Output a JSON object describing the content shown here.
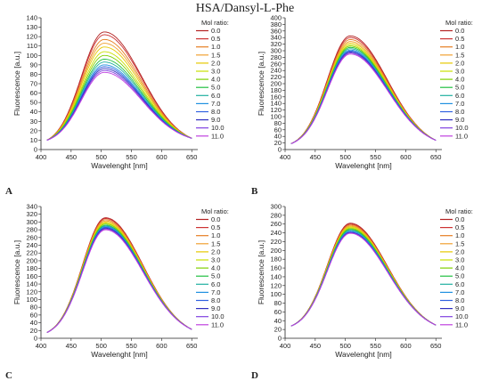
{
  "figure_title": "HSA/Dansyl-L-Phe",
  "series_colors": [
    "#b22222",
    "#cc3333",
    "#e67e22",
    "#f0a030",
    "#e6c800",
    "#c8e000",
    "#7fd000",
    "#20c040",
    "#20b0a0",
    "#2090e0",
    "#3060e0",
    "#3030c0",
    "#8040e0",
    "#c040e0"
  ],
  "chart_data": [
    {
      "panel_label": "A",
      "type": "line",
      "xlabel": "Wavelenght [nm]",
      "ylabel": "Fluorescence [a.u.]",
      "xlim": [
        400,
        660
      ],
      "ylim": [
        0,
        140
      ],
      "xticks": [
        400,
        450,
        500,
        550,
        600,
        650
      ],
      "yticks": [
        0,
        10,
        20,
        30,
        40,
        50,
        60,
        70,
        80,
        90,
        100,
        110,
        120,
        130,
        140
      ],
      "legend_title": "Mol ratio:",
      "legend_position": "right",
      "x_range": [
        410,
        650
      ],
      "series": [
        {
          "name": "0.0",
          "peak": 125,
          "peak_x": 505,
          "start": 10,
          "end": 12
        },
        {
          "name": "0.5",
          "peak": 122,
          "peak_x": 505,
          "start": 10,
          "end": 12
        },
        {
          "name": "1.0",
          "peak": 117,
          "peak_x": 505,
          "start": 10,
          "end": 12
        },
        {
          "name": "1.5",
          "peak": 113,
          "peak_x": 505,
          "start": 10,
          "end": 12
        },
        {
          "name": "2.0",
          "peak": 109,
          "peak_x": 505,
          "start": 10,
          "end": 12
        },
        {
          "name": "3.0",
          "peak": 104,
          "peak_x": 505,
          "start": 10,
          "end": 12
        },
        {
          "name": "4.0",
          "peak": 100,
          "peak_x": 505,
          "start": 10,
          "end": 12
        },
        {
          "name": "5.0",
          "peak": 96,
          "peak_x": 505,
          "start": 10,
          "end": 12
        },
        {
          "name": "6.0",
          "peak": 93,
          "peak_x": 505,
          "start": 10,
          "end": 12
        },
        {
          "name": "7.0",
          "peak": 90,
          "peak_x": 505,
          "start": 10,
          "end": 12
        },
        {
          "name": "8.0",
          "peak": 88,
          "peak_x": 505,
          "start": 10,
          "end": 12
        },
        {
          "name": "9.0",
          "peak": 86,
          "peak_x": 505,
          "start": 10,
          "end": 12
        },
        {
          "name": "10.0",
          "peak": 84,
          "peak_x": 505,
          "start": 10,
          "end": 12
        },
        {
          "name": "11.0",
          "peak": 82,
          "peak_x": 505,
          "start": 10,
          "end": 12
        }
      ]
    },
    {
      "panel_label": "B",
      "type": "line",
      "xlabel": "Wavelenght [nm]",
      "ylabel": "Fluorescence [a.u.]",
      "xlim": [
        400,
        660
      ],
      "ylim": [
        0,
        400
      ],
      "xticks": [
        400,
        450,
        500,
        550,
        600,
        650
      ],
      "yticks": [
        0,
        20,
        40,
        60,
        80,
        100,
        120,
        140,
        160,
        180,
        200,
        220,
        240,
        260,
        280,
        300,
        320,
        340,
        360,
        380,
        400
      ],
      "legend_title": "Mol ratio:",
      "legend_position": "right",
      "x_range": [
        410,
        650
      ],
      "series": [
        {
          "name": "0.0",
          "peak": 345,
          "peak_x": 508,
          "start": 18,
          "end": 28
        },
        {
          "name": "0.5",
          "peak": 340,
          "peak_x": 508,
          "start": 18,
          "end": 28
        },
        {
          "name": "1.0",
          "peak": 334,
          "peak_x": 508,
          "start": 18,
          "end": 28
        },
        {
          "name": "1.5",
          "peak": 328,
          "peak_x": 508,
          "start": 18,
          "end": 28
        },
        {
          "name": "2.0",
          "peak": 323,
          "peak_x": 508,
          "start": 18,
          "end": 28
        },
        {
          "name": "3.0",
          "peak": 318,
          "peak_x": 508,
          "start": 18,
          "end": 28
        },
        {
          "name": "4.0",
          "peak": 314,
          "peak_x": 508,
          "start": 18,
          "end": 28
        },
        {
          "name": "5.0",
          "peak": 310,
          "peak_x": 508,
          "start": 18,
          "end": 28
        },
        {
          "name": "6.0",
          "peak": 306,
          "peak_x": 508,
          "start": 18,
          "end": 28
        },
        {
          "name": "7.0",
          "peak": 302,
          "peak_x": 508,
          "start": 18,
          "end": 28
        },
        {
          "name": "8.0",
          "peak": 299,
          "peak_x": 508,
          "start": 18,
          "end": 28
        },
        {
          "name": "9.0",
          "peak": 296,
          "peak_x": 508,
          "start": 18,
          "end": 28
        },
        {
          "name": "10.0",
          "peak": 293,
          "peak_x": 508,
          "start": 18,
          "end": 28
        },
        {
          "name": "11.0",
          "peak": 290,
          "peak_x": 508,
          "start": 18,
          "end": 28
        }
      ]
    },
    {
      "panel_label": "C",
      "type": "line",
      "xlabel": "Wavelenght [nm]",
      "ylabel": "Fluorescence [a.u.]",
      "xlim": [
        400,
        660
      ],
      "ylim": [
        0,
        340
      ],
      "xticks": [
        400,
        450,
        500,
        550,
        600,
        650
      ],
      "yticks": [
        0,
        20,
        40,
        60,
        80,
        100,
        120,
        140,
        160,
        180,
        200,
        220,
        240,
        260,
        280,
        300,
        320,
        340
      ],
      "legend_title": "Mol ratio:",
      "legend_position": "right",
      "x_range": [
        410,
        650
      ],
      "series": [
        {
          "name": "0.0",
          "peak": 311,
          "peak_x": 507,
          "start": 15,
          "end": 23
        },
        {
          "name": "0.5",
          "peak": 309,
          "peak_x": 507,
          "start": 15,
          "end": 23
        },
        {
          "name": "1.0",
          "peak": 306,
          "peak_x": 507,
          "start": 15,
          "end": 23
        },
        {
          "name": "1.5",
          "peak": 303,
          "peak_x": 507,
          "start": 15,
          "end": 23
        },
        {
          "name": "2.0",
          "peak": 300,
          "peak_x": 507,
          "start": 15,
          "end": 23
        },
        {
          "name": "3.0",
          "peak": 297,
          "peak_x": 507,
          "start": 15,
          "end": 23
        },
        {
          "name": "4.0",
          "peak": 295,
          "peak_x": 507,
          "start": 15,
          "end": 23
        },
        {
          "name": "5.0",
          "peak": 292,
          "peak_x": 507,
          "start": 15,
          "end": 23
        },
        {
          "name": "6.0",
          "peak": 290,
          "peak_x": 507,
          "start": 15,
          "end": 23
        },
        {
          "name": "7.0",
          "peak": 288,
          "peak_x": 507,
          "start": 15,
          "end": 23
        },
        {
          "name": "8.0",
          "peak": 286,
          "peak_x": 507,
          "start": 15,
          "end": 23
        },
        {
          "name": "9.0",
          "peak": 284,
          "peak_x": 507,
          "start": 15,
          "end": 23
        },
        {
          "name": "10.0",
          "peak": 282,
          "peak_x": 507,
          "start": 15,
          "end": 23
        },
        {
          "name": "11.0",
          "peak": 280,
          "peak_x": 507,
          "start": 15,
          "end": 23
        }
      ]
    },
    {
      "panel_label": "D",
      "type": "line",
      "xlabel": "Wavelenght [nm]",
      "ylabel": "Fluorescence [a.u.]",
      "xlim": [
        400,
        660
      ],
      "ylim": [
        0,
        300
      ],
      "xticks": [
        400,
        450,
        500,
        550,
        600,
        650
      ],
      "yticks": [
        0,
        20,
        40,
        60,
        80,
        100,
        120,
        140,
        160,
        180,
        200,
        220,
        240,
        260,
        280,
        300
      ],
      "legend_title": "Mol ratio:",
      "legend_position": "right",
      "x_range": [
        410,
        650
      ],
      "series": [
        {
          "name": "0.0",
          "peak": 262,
          "peak_x": 508,
          "start": 28,
          "end": 30
        },
        {
          "name": "0.5",
          "peak": 260,
          "peak_x": 508,
          "start": 28,
          "end": 30
        },
        {
          "name": "1.0",
          "peak": 258,
          "peak_x": 508,
          "start": 28,
          "end": 30
        },
        {
          "name": "1.5",
          "peak": 256,
          "peak_x": 508,
          "start": 28,
          "end": 30
        },
        {
          "name": "2.0",
          "peak": 254,
          "peak_x": 508,
          "start": 28,
          "end": 30
        },
        {
          "name": "3.0",
          "peak": 252,
          "peak_x": 508,
          "start": 28,
          "end": 30
        },
        {
          "name": "4.0",
          "peak": 250,
          "peak_x": 508,
          "start": 28,
          "end": 30
        },
        {
          "name": "5.0",
          "peak": 248,
          "peak_x": 508,
          "start": 28,
          "end": 30
        },
        {
          "name": "6.0",
          "peak": 246,
          "peak_x": 508,
          "start": 28,
          "end": 30
        },
        {
          "name": "7.0",
          "peak": 244,
          "peak_x": 508,
          "start": 28,
          "end": 30
        },
        {
          "name": "8.0",
          "peak": 242,
          "peak_x": 508,
          "start": 28,
          "end": 30
        },
        {
          "name": "9.0",
          "peak": 241,
          "peak_x": 508,
          "start": 28,
          "end": 30
        },
        {
          "name": "10.0",
          "peak": 240,
          "peak_x": 508,
          "start": 28,
          "end": 30
        },
        {
          "name": "11.0",
          "peak": 239,
          "peak_x": 508,
          "start": 28,
          "end": 30
        }
      ]
    }
  ]
}
